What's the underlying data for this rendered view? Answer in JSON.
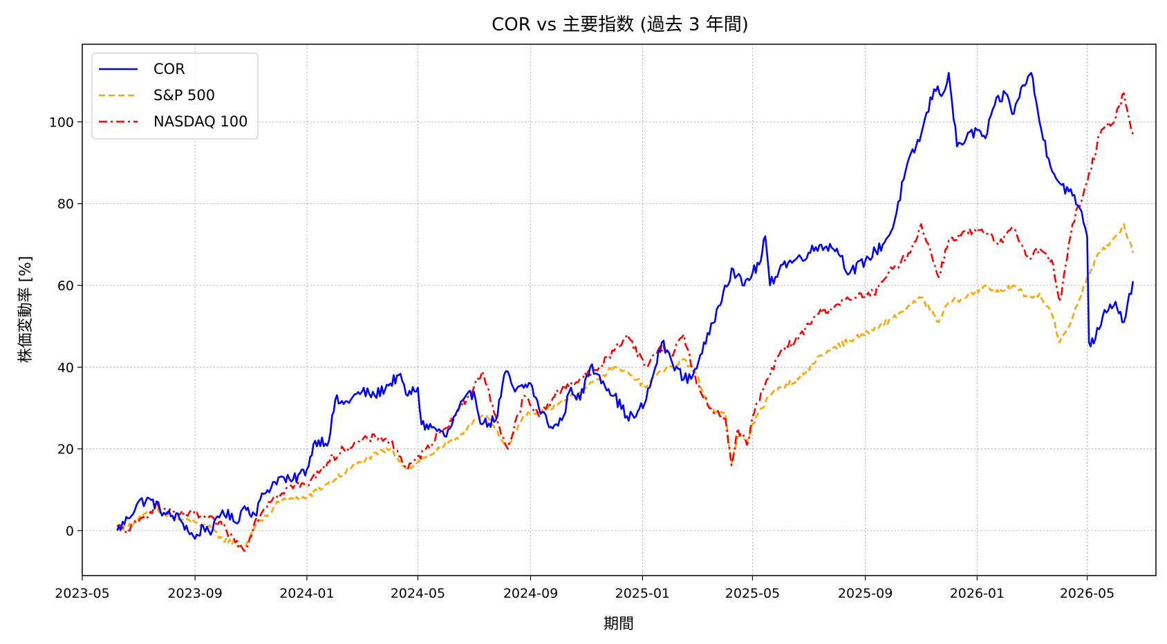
{
  "chart_data": {
    "type": "line",
    "title": "COR vs 主要指数 (過去 3 年間)",
    "xlabel": "期間",
    "ylabel": "株価変動率 [%]",
    "xlim": [
      "2023-05-01",
      "2026-07-15"
    ],
    "ylim": [
      -11,
      119
    ],
    "grid": true,
    "legend_position": "top-left",
    "x_ticks": [
      "2023-05",
      "2023-09",
      "2024-01",
      "2024-05",
      "2024-09",
      "2025-01",
      "2025-05",
      "2025-09",
      "2026-01",
      "2026-05"
    ],
    "y_ticks": [
      0,
      20,
      40,
      60,
      80,
      100
    ],
    "series": [
      {
        "name": "COR",
        "color": "#0000ff",
        "style": "solid",
        "points": [
          [
            "2023-06-08",
            0
          ],
          [
            "2023-06-20",
            3
          ],
          [
            "2023-07-01",
            7
          ],
          [
            "2023-07-15",
            7.5
          ],
          [
            "2023-07-31",
            4
          ],
          [
            "2023-08-15",
            3
          ],
          [
            "2023-09-01",
            -2
          ],
          [
            "2023-09-10",
            1
          ],
          [
            "2023-09-20",
            0
          ],
          [
            "2023-10-01",
            5
          ],
          [
            "2023-10-15",
            2
          ],
          [
            "2023-10-25",
            6
          ],
          [
            "2023-11-05",
            4
          ],
          [
            "2023-11-15",
            9
          ],
          [
            "2023-12-01",
            13
          ],
          [
            "2023-12-15",
            12
          ],
          [
            "2024-01-01",
            15
          ],
          [
            "2024-01-10",
            22
          ],
          [
            "2024-01-25",
            22
          ],
          [
            "2024-02-01",
            32
          ],
          [
            "2024-02-10",
            31
          ],
          [
            "2024-03-01",
            34
          ],
          [
            "2024-03-15",
            33
          ],
          [
            "2024-04-01",
            36
          ],
          [
            "2024-04-10",
            38
          ],
          [
            "2024-04-20",
            33
          ],
          [
            "2024-05-01",
            35
          ],
          [
            "2024-05-05",
            26
          ],
          [
            "2024-05-20",
            25
          ],
          [
            "2024-06-01",
            23
          ],
          [
            "2024-06-15",
            30
          ],
          [
            "2024-07-01",
            34
          ],
          [
            "2024-07-10",
            26
          ],
          [
            "2024-07-25",
            27
          ],
          [
            "2024-08-05",
            39
          ],
          [
            "2024-08-15",
            34
          ],
          [
            "2024-09-01",
            36
          ],
          [
            "2024-09-10",
            30
          ],
          [
            "2024-09-25",
            25
          ],
          [
            "2024-10-05",
            27
          ],
          [
            "2024-10-15",
            35
          ],
          [
            "2024-10-25",
            32
          ],
          [
            "2024-11-05",
            40
          ],
          [
            "2024-11-15",
            38
          ],
          [
            "2024-12-01",
            33
          ],
          [
            "2024-12-15",
            28
          ],
          [
            "2024-12-25",
            28
          ],
          [
            "2025-01-05",
            32
          ],
          [
            "2025-01-15",
            40
          ],
          [
            "2025-01-22",
            46
          ],
          [
            "2025-02-01",
            42
          ],
          [
            "2025-02-15",
            37
          ],
          [
            "2025-02-25",
            38
          ],
          [
            "2025-03-05",
            43
          ],
          [
            "2025-03-15",
            48
          ],
          [
            "2025-03-25",
            55
          ],
          [
            "2025-04-01",
            60
          ],
          [
            "2025-04-10",
            64
          ],
          [
            "2025-04-20",
            60
          ],
          [
            "2025-05-01",
            63
          ],
          [
            "2025-05-10",
            66
          ],
          [
            "2025-05-15",
            72
          ],
          [
            "2025-05-20",
            60
          ],
          [
            "2025-06-01",
            65
          ],
          [
            "2025-06-15",
            66
          ],
          [
            "2025-07-01",
            68
          ],
          [
            "2025-07-15",
            70
          ],
          [
            "2025-08-01",
            69
          ],
          [
            "2025-08-15",
            63
          ],
          [
            "2025-09-01",
            66
          ],
          [
            "2025-09-20",
            70
          ],
          [
            "2025-10-01",
            74
          ],
          [
            "2025-10-15",
            88
          ],
          [
            "2025-11-01",
            97
          ],
          [
            "2025-11-15",
            108
          ],
          [
            "2025-11-25",
            107
          ],
          [
            "2025-12-01",
            112
          ],
          [
            "2025-12-10",
            94
          ],
          [
            "2025-12-20",
            96
          ],
          [
            "2026-01-01",
            98
          ],
          [
            "2026-01-10",
            96
          ],
          [
            "2026-01-20",
            104
          ],
          [
            "2026-02-01",
            107
          ],
          [
            "2026-02-10",
            102
          ],
          [
            "2026-02-20",
            109
          ],
          [
            "2026-03-01",
            112
          ],
          [
            "2026-03-10",
            100
          ],
          [
            "2026-03-20",
            91
          ],
          [
            "2026-04-01",
            85
          ],
          [
            "2026-04-15",
            82
          ],
          [
            "2026-04-25",
            78
          ],
          [
            "2026-05-01",
            72
          ],
          [
            "2026-05-03",
            46
          ],
          [
            "2026-05-10",
            47
          ],
          [
            "2026-05-20",
            54
          ],
          [
            "2026-06-01",
            56
          ],
          [
            "2026-06-10",
            51
          ],
          [
            "2026-06-20",
            61
          ]
        ]
      },
      {
        "name": "S&P 500",
        "color": "#ffa500",
        "style": "dashed",
        "points": [
          [
            "2023-06-08",
            0
          ],
          [
            "2023-06-20",
            1
          ],
          [
            "2023-07-01",
            3
          ],
          [
            "2023-07-20",
            5
          ],
          [
            "2023-08-10",
            3
          ],
          [
            "2023-09-01",
            2
          ],
          [
            "2023-09-15",
            1
          ],
          [
            "2023-10-01",
            -2
          ],
          [
            "2023-10-25",
            -4
          ],
          [
            "2023-11-05",
            1
          ],
          [
            "2023-11-20",
            4
          ],
          [
            "2023-12-01",
            7
          ],
          [
            "2023-12-15",
            8
          ],
          [
            "2024-01-01",
            8
          ],
          [
            "2024-01-20",
            11
          ],
          [
            "2024-02-10",
            14
          ],
          [
            "2024-03-01",
            17
          ],
          [
            "2024-03-20",
            19
          ],
          [
            "2024-04-01",
            20
          ],
          [
            "2024-04-20",
            15
          ],
          [
            "2024-05-10",
            18
          ],
          [
            "2024-05-25",
            20
          ],
          [
            "2024-06-10",
            22
          ],
          [
            "2024-07-01",
            27
          ],
          [
            "2024-07-15",
            28
          ],
          [
            "2024-08-01",
            22
          ],
          [
            "2024-08-07",
            21
          ],
          [
            "2024-08-25",
            28
          ],
          [
            "2024-09-10",
            29
          ],
          [
            "2024-10-01",
            31
          ],
          [
            "2024-10-15",
            33
          ],
          [
            "2024-11-01",
            35
          ],
          [
            "2024-11-15",
            37
          ],
          [
            "2024-12-01",
            40
          ],
          [
            "2024-12-20",
            38
          ],
          [
            "2025-01-05",
            35
          ],
          [
            "2025-01-20",
            39
          ],
          [
            "2025-02-01",
            40
          ],
          [
            "2025-02-15",
            42
          ],
          [
            "2025-03-01",
            38
          ],
          [
            "2025-03-15",
            30
          ],
          [
            "2025-04-01",
            29
          ],
          [
            "2025-04-08",
            16
          ],
          [
            "2025-04-15",
            23
          ],
          [
            "2025-04-25",
            22
          ],
          [
            "2025-05-05",
            28
          ],
          [
            "2025-05-20",
            33
          ],
          [
            "2025-06-01",
            35
          ],
          [
            "2025-06-20",
            37
          ],
          [
            "2025-07-10",
            42
          ],
          [
            "2025-07-30",
            45
          ],
          [
            "2025-08-20",
            47
          ],
          [
            "2025-09-10",
            49
          ],
          [
            "2025-10-01",
            52
          ],
          [
            "2025-10-20",
            55
          ],
          [
            "2025-11-01",
            57
          ],
          [
            "2025-11-20",
            51
          ],
          [
            "2025-12-01",
            56
          ],
          [
            "2025-12-20",
            57
          ],
          [
            "2026-01-10",
            60
          ],
          [
            "2026-01-25",
            58
          ],
          [
            "2026-02-10",
            60
          ],
          [
            "2026-02-25",
            57
          ],
          [
            "2026-03-10",
            58
          ],
          [
            "2026-03-25",
            52
          ],
          [
            "2026-04-01",
            46
          ],
          [
            "2026-04-15",
            52
          ],
          [
            "2026-05-01",
            62
          ],
          [
            "2026-05-15",
            68
          ],
          [
            "2026-06-01",
            72
          ],
          [
            "2026-06-10",
            75
          ],
          [
            "2026-06-20",
            68
          ]
        ]
      },
      {
        "name": "NASDAQ 100",
        "color": "#ff0000",
        "style": "dashdot",
        "points": [
          [
            "2023-06-08",
            1
          ],
          [
            "2023-06-20",
            0
          ],
          [
            "2023-07-01",
            2
          ],
          [
            "2023-07-20",
            6
          ],
          [
            "2023-08-10",
            4
          ],
          [
            "2023-09-01",
            4
          ],
          [
            "2023-09-15",
            3
          ],
          [
            "2023-10-01",
            1
          ],
          [
            "2023-10-25",
            -5
          ],
          [
            "2023-11-05",
            2
          ],
          [
            "2023-11-20",
            7
          ],
          [
            "2023-12-01",
            9
          ],
          [
            "2023-12-15",
            11
          ],
          [
            "2024-01-01",
            11
          ],
          [
            "2024-01-20",
            16
          ],
          [
            "2024-02-10",
            20
          ],
          [
            "2024-03-01",
            22
          ],
          [
            "2024-03-20",
            23
          ],
          [
            "2024-04-01",
            22
          ],
          [
            "2024-04-20",
            15
          ],
          [
            "2024-05-10",
            20
          ],
          [
            "2024-05-25",
            24
          ],
          [
            "2024-06-10",
            28
          ],
          [
            "2024-07-01",
            35
          ],
          [
            "2024-07-10",
            39
          ],
          [
            "2024-07-25",
            28
          ],
          [
            "2024-08-07",
            20
          ],
          [
            "2024-08-25",
            33
          ],
          [
            "2024-09-10",
            28
          ],
          [
            "2024-10-01",
            34
          ],
          [
            "2024-10-15",
            36
          ],
          [
            "2024-11-01",
            38
          ],
          [
            "2024-11-15",
            40
          ],
          [
            "2024-12-01",
            44
          ],
          [
            "2024-12-15",
            48
          ],
          [
            "2025-01-05",
            40
          ],
          [
            "2025-01-20",
            45
          ],
          [
            "2025-02-01",
            43
          ],
          [
            "2025-02-15",
            48
          ],
          [
            "2025-03-01",
            36
          ],
          [
            "2025-03-15",
            30
          ],
          [
            "2025-04-01",
            28
          ],
          [
            "2025-04-08",
            16
          ],
          [
            "2025-04-15",
            25
          ],
          [
            "2025-04-25",
            21
          ],
          [
            "2025-05-05",
            31
          ],
          [
            "2025-05-20",
            38
          ],
          [
            "2025-06-01",
            44
          ],
          [
            "2025-06-20",
            47
          ],
          [
            "2025-07-10",
            53
          ],
          [
            "2025-07-30",
            55
          ],
          [
            "2025-08-20",
            57
          ],
          [
            "2025-09-10",
            58
          ],
          [
            "2025-10-01",
            64
          ],
          [
            "2025-10-20",
            68
          ],
          [
            "2025-11-01",
            75
          ],
          [
            "2025-11-20",
            62
          ],
          [
            "2025-12-01",
            71
          ],
          [
            "2025-12-20",
            73
          ],
          [
            "2026-01-10",
            73
          ],
          [
            "2026-01-25",
            70
          ],
          [
            "2026-02-10",
            74
          ],
          [
            "2026-02-25",
            67
          ],
          [
            "2026-03-10",
            69
          ],
          [
            "2026-03-25",
            65
          ],
          [
            "2026-04-01",
            56
          ],
          [
            "2026-04-15",
            75
          ],
          [
            "2026-05-01",
            85
          ],
          [
            "2026-05-15",
            97
          ],
          [
            "2026-06-01",
            101
          ],
          [
            "2026-06-10",
            107
          ],
          [
            "2026-06-20",
            97
          ]
        ]
      }
    ]
  }
}
